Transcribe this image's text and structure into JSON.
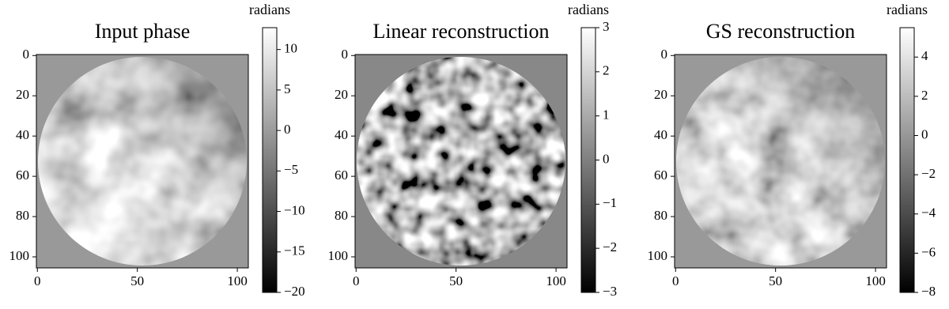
{
  "chart_data": [
    {
      "type": "heatmap",
      "title": "Input phase",
      "cmap": "gray",
      "colorbar_label": "radians",
      "xlim": [
        -0.5,
        105.5
      ],
      "xticks": [
        0,
        50,
        100
      ],
      "ylim": [
        -0.5,
        105.5
      ],
      "y_inverted": true,
      "yticks": [
        0,
        20,
        40,
        60,
        80,
        100
      ],
      "clim": [
        -20,
        12.7
      ],
      "cticks": [
        {
          "value": 10,
          "label": "10"
        },
        {
          "value": 5,
          "label": "5"
        },
        0,
        {
          "value": -5,
          "label": "−5"
        },
        {
          "value": -10,
          "label": "−10"
        },
        {
          "value": -15,
          "label": "−15"
        },
        {
          "value": -20,
          "label": "−20"
        }
      ]
    },
    {
      "type": "heatmap",
      "title": "Linear reconstruction",
      "cmap": "gray",
      "colorbar_label": "radians",
      "xlim": [
        -0.5,
        105.5
      ],
      "xticks": [
        0,
        50,
        100
      ],
      "ylim": [
        -0.5,
        105.5
      ],
      "y_inverted": true,
      "yticks": [
        0,
        20,
        40,
        60,
        80,
        100
      ],
      "clim": [
        -3,
        3
      ],
      "cticks": [
        3,
        2,
        1,
        0,
        {
          "value": -1,
          "label": "−1"
        },
        {
          "value": -2,
          "label": "−2"
        },
        {
          "value": -3,
          "label": "−3"
        }
      ]
    },
    {
      "type": "heatmap",
      "title": "GS reconstruction",
      "cmap": "gray",
      "colorbar_label": "radians",
      "xlim": [
        -0.5,
        105.5
      ],
      "xticks": [
        0,
        50,
        100
      ],
      "ylim": [
        -0.5,
        105.5
      ],
      "y_inverted": true,
      "yticks": [
        0,
        20,
        40,
        60,
        80,
        100
      ],
      "clim": [
        -8,
        5.5
      ],
      "cticks": [
        4,
        2,
        0,
        {
          "value": -2,
          "label": "−2"
        },
        {
          "value": -4,
          "label": "−4"
        },
        {
          "value": -6,
          "label": "−6"
        },
        {
          "value": -8,
          "label": "−8"
        }
      ]
    }
  ]
}
